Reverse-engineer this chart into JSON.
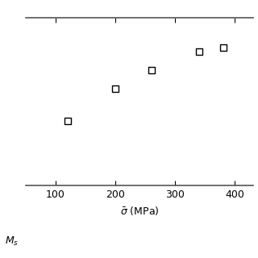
{
  "x_data": [
    120,
    200,
    260,
    340,
    380
  ],
  "y_data": [
    0.35,
    0.52,
    0.62,
    0.72,
    0.74
  ],
  "xlabel": "$\\bar{\\sigma}$ (MPa)",
  "ylabel_text": "$M_s$",
  "xlim": [
    50,
    430
  ],
  "ylim": [
    0.0,
    0.9
  ],
  "xticks": [
    100,
    200,
    300,
    400
  ],
  "marker": "s",
  "marker_size": 40,
  "marker_facecolor": "white",
  "marker_edgecolor": "black",
  "marker_edgewidth": 1.0,
  "background_color": "#ffffff",
  "spine_color": "#555555",
  "xlabel_fontsize": 9,
  "ylabel_fontsize": 9,
  "tick_fontsize": 9
}
